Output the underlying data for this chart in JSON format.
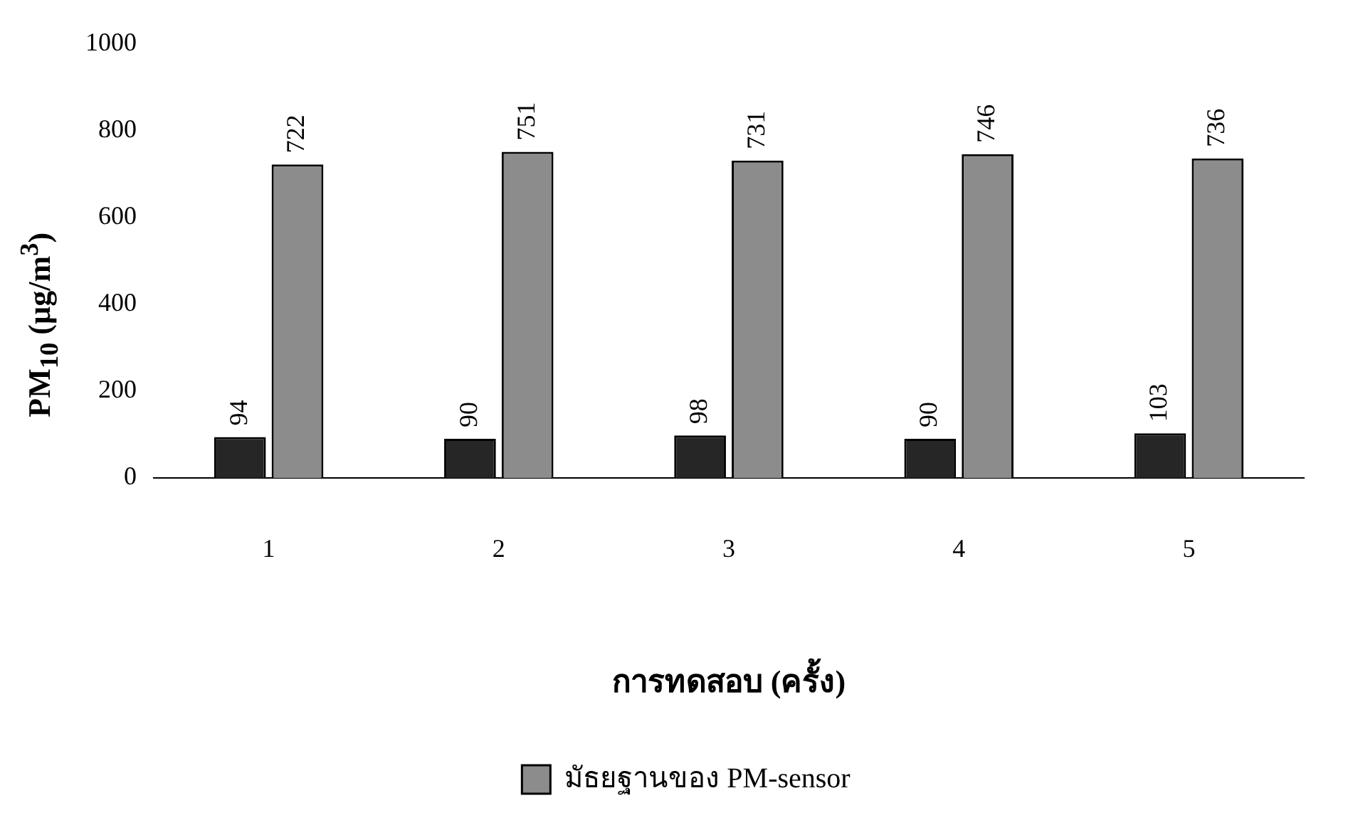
{
  "chart_data": {
    "type": "bar",
    "xlabel": "การทดสอบ (ครั้ง)",
    "ylabel": "PM$_{10}$ (µg/m$^{3}$)",
    "categories": [
      "1",
      "2",
      "3",
      "4",
      "5"
    ],
    "series": [
      {
        "color": "#262626",
        "values": [
          94,
          90,
          98,
          90,
          103
        ]
      },
      {
        "name": "มัธยฐานของ PM-sensor",
        "color": "#8c8c8c",
        "values": [
          722,
          751,
          731,
          746,
          736
        ]
      }
    ],
    "ylim": [
      0,
      1000
    ],
    "yticks": [
      0,
      200,
      400,
      600,
      800,
      1000
    ],
    "grid": false,
    "legend": "bottom",
    "data_labels": true
  }
}
